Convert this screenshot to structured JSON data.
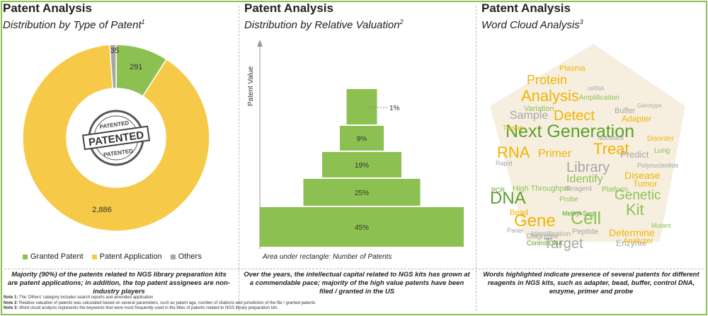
{
  "panels": [
    {
      "title": "Patent Analysis",
      "subtitle": "Distribution by Type of Patent",
      "sup": "1"
    },
    {
      "title": "Patent Analysis",
      "subtitle": "Distribution by Relative Valuation",
      "sup": "2"
    },
    {
      "title": "Patent Analysis",
      "subtitle": "Word Cloud Analysis",
      "sup": "3"
    }
  ],
  "chart_data": [
    {
      "type": "pie",
      "variant": "donut",
      "categories": [
        "Granted Patent",
        "Patent Application",
        "Others"
      ],
      "values": [
        291,
        2886,
        35
      ],
      "labels": [
        "291",
        "2,886",
        "35"
      ],
      "colors": [
        "#8cc152",
        "#f7c948",
        "#a6a6a6"
      ],
      "center_stamp": {
        "top": "PATENTED",
        "middle": "PATENTED",
        "bottom": "PATENTED"
      },
      "legend_position": "bottom"
    },
    {
      "type": "bar",
      "variant": "stacked-pyramid",
      "categories": [
        "45%",
        "25%",
        "19%",
        "9%",
        "1%"
      ],
      "values": [
        45,
        25,
        19,
        9,
        1
      ],
      "ylabel": "Patent Value",
      "note": "Area under rectangle: Number of Patents",
      "color": "#8cc152"
    }
  ],
  "word_cloud": {
    "shape": "pentagon",
    "big_words": [
      {
        "text": "Next Generation",
        "color": "#5aa02c"
      },
      {
        "text": "Library",
        "color": "#a6a6a6"
      },
      {
        "text": "Gene",
        "color": "#f0b400"
      },
      {
        "text": "Cell",
        "color": "#8cc152"
      },
      {
        "text": "Kit",
        "color": "#8cc152"
      },
      {
        "text": "Target",
        "color": "#a6a6a6"
      },
      {
        "text": "Treat",
        "color": "#f0b400"
      },
      {
        "text": "DNA",
        "color": "#5aa02c"
      },
      {
        "text": "RNA",
        "color": "#f0b400"
      },
      {
        "text": "Analysis",
        "color": "#f0b400"
      },
      {
        "text": "Detect",
        "color": "#f0b400"
      },
      {
        "text": "Sample",
        "color": "#a6a6a6"
      },
      {
        "text": "Genetic",
        "color": "#8cc152"
      },
      {
        "text": "Protein",
        "color": "#f0b400"
      },
      {
        "text": "Identify",
        "color": "#8cc152"
      },
      {
        "text": "Disease",
        "color": "#f0b400"
      },
      {
        "text": "Primer",
        "color": "#f0b400"
      },
      {
        "text": "Predict",
        "color": "#a6a6a6"
      },
      {
        "text": "Determine",
        "color": "#f0b400"
      },
      {
        "text": "Variation",
        "color": "#8cc152"
      },
      {
        "text": "Adapter",
        "color": "#f0b400"
      },
      {
        "text": "Buffer",
        "color": "#a6a6a6"
      },
      {
        "text": "Tumor",
        "color": "#f0b400"
      },
      {
        "text": "Enzyme",
        "color": "#a6a6a6"
      },
      {
        "text": "Plasma",
        "color": "#f0b400"
      },
      {
        "text": "High Throughput",
        "color": "#8cc152"
      },
      {
        "text": "Bead",
        "color": "#f0b400"
      },
      {
        "text": "Probe",
        "color": "#8cc152"
      },
      {
        "text": "PCR",
        "color": "#5aa02c"
      },
      {
        "text": "Reagent",
        "color": "#a6a6a6"
      },
      {
        "text": "Peptide",
        "color": "#a6a6a6"
      },
      {
        "text": "Platform",
        "color": "#8cc152"
      },
      {
        "text": "Amplification",
        "color": "#8cc152"
      },
      {
        "text": "Diagnosis",
        "color": "#a6a6a6"
      },
      {
        "text": "Polynucleotide",
        "color": "#a6a6a6"
      },
      {
        "text": "Methyl Seq",
        "color": "#5aa02c"
      },
      {
        "text": "Identification",
        "color": "#a6a6a6"
      },
      {
        "text": "Control DNA",
        "color": "#5aa02c"
      },
      {
        "text": "Analyzer",
        "color": "#f0b400"
      },
      {
        "text": "Tissue",
        "color": "#f0b400"
      },
      {
        "text": "Disorder",
        "color": "#f0b400"
      },
      {
        "text": "Lung",
        "color": "#8cc152"
      },
      {
        "text": "Rapid",
        "color": "#a6a6a6"
      },
      {
        "text": "Panel",
        "color": "#a6a6a6"
      },
      {
        "text": "Mutant",
        "color": "#8cc152"
      },
      {
        "text": "Nuclease",
        "color": "#a6a6a6"
      },
      {
        "text": "Genotype",
        "color": "#a6a6a6"
      },
      {
        "text": "mRNA",
        "color": "#a6a6a6"
      }
    ]
  },
  "summaries": [
    "Majority (90%) of the patents related to NGS library preparation kits are patent applications; in addition, the top patent assignees are non-industry players",
    "Over the years, the intellectual capital related to NGS kits has grown at a commendable pace; majority of the high value patents have been filed / granted in the US",
    "Words highlighted indicate presence of several patents for different reagents in NGS kits, such as adapter, bead, buffer, control DNA, enzyme, primer and probe"
  ],
  "notes": [
    {
      "label": "Note 1:",
      "text": "The 'Others' category includes search reports and amended application"
    },
    {
      "label": "Note 2:",
      "text": "Relative valuation of patents was calculated based on several parameters, such as patent age, number of citations and jurisdiction of the file / granted patents"
    },
    {
      "label": "Note 3:",
      "text": "Word cloud analysis represents the keywords that were most frequently used in the titles of patents related to NGS library preparation kits"
    }
  ]
}
